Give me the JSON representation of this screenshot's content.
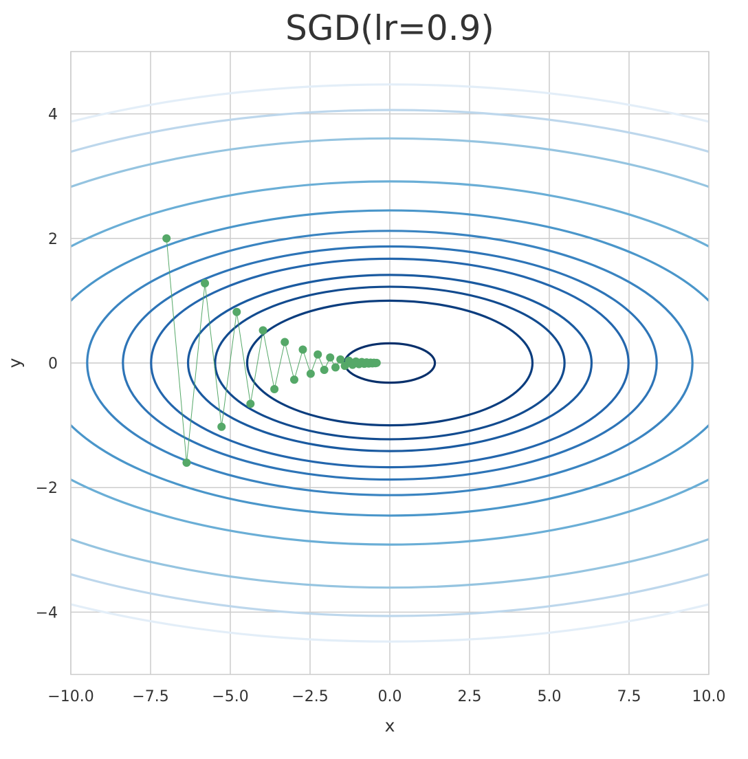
{
  "chart_data": {
    "type": "contour",
    "title": "SGD(lr=0.9)",
    "xlabel": "x",
    "ylabel": "y",
    "xlim": [
      -10,
      10
    ],
    "ylim": [
      -5,
      5
    ],
    "x_ticks": [
      -10,
      -7.5,
      -5,
      -2.5,
      0,
      2.5,
      5,
      7.5,
      10
    ],
    "x_tick_labels": [
      "−10.0",
      "−7.5",
      "−5.0",
      "−2.5",
      "0.0",
      "2.5",
      "5.0",
      "7.5",
      "10.0"
    ],
    "y_ticks": [
      -4,
      -2,
      0,
      2,
      4
    ],
    "y_tick_labels": [
      "−4",
      "−2",
      "0",
      "2",
      "4"
    ],
    "grid": true,
    "contour": {
      "function": "x^2/20 + y^2",
      "levels": [
        0.1,
        1,
        1.5,
        2,
        2.8,
        3.5,
        4.5,
        6,
        8.5,
        13,
        16.5,
        20
      ],
      "colormap": "Blues_r",
      "level_colors": [
        "#08306b",
        "#0b3d7e",
        "#124b8f",
        "#1a5aa0",
        "#2366ad",
        "#2d74b7",
        "#3a84c1",
        "#4a96ca",
        "#6aaed6",
        "#95c4e0",
        "#bdd7ec",
        "#e3eef8"
      ]
    },
    "series": [
      {
        "name": "",
        "color": "#55a868",
        "x": [
          -7.0,
          -6.37,
          -5.796,
          -5.275,
          -4.8,
          -4.368,
          -3.975,
          -3.618,
          -3.292,
          -2.996,
          -2.727,
          -2.481,
          -2.258,
          -2.055,
          -1.87,
          -1.702,
          -1.548,
          -1.409,
          -1.282,
          -1.167,
          -1.062,
          -0.966,
          -0.879,
          -0.8,
          -0.728,
          -0.662,
          -0.603,
          -0.548,
          -0.499,
          -0.454,
          -0.413
        ],
        "y": [
          2.0,
          -1.6,
          1.28,
          -1.024,
          0.819,
          -0.655,
          0.524,
          -0.419,
          0.336,
          -0.268,
          0.215,
          -0.172,
          0.137,
          -0.11,
          0.088,
          -0.07,
          0.056,
          -0.045,
          0.036,
          -0.029,
          0.023,
          -0.018,
          0.015,
          -0.012,
          0.009,
          -0.008,
          0.006,
          -0.005,
          0.004,
          -0.003,
          0.002
        ]
      }
    ]
  }
}
